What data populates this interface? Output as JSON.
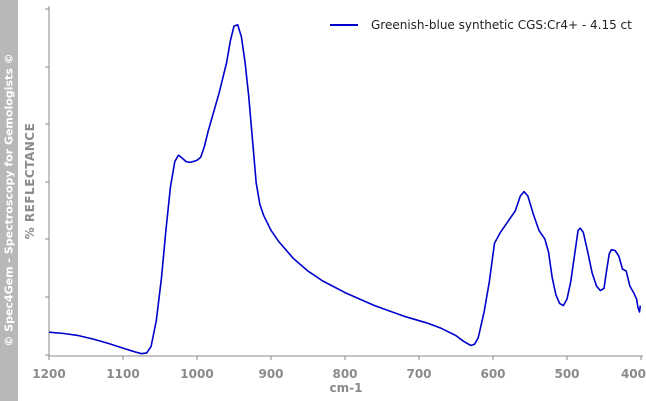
{
  "watermark": "© Spec4Gem - Spectroscopy for Gemologists ©",
  "chart_data": {
    "type": "line",
    "xlabel": "cm-1",
    "ylabel": "% REFLECTANCE",
    "xlim": [
      1200,
      400
    ],
    "x_reversed": true,
    "x_ticks": [
      "1200",
      "1100",
      "1000",
      "900",
      "800",
      "700",
      "600",
      "500",
      "400"
    ],
    "y_ticks_labeled": false,
    "grid": false,
    "legend": {
      "position": "top-right"
    },
    "series": [
      {
        "name": "Greenish-blue synthetic CGS:Cr4+ - 4.15 ct",
        "color": "#0000cc",
        "points": [
          [
            1200,
            5.3
          ],
          [
            1180,
            5.0
          ],
          [
            1160,
            4.5
          ],
          [
            1140,
            3.7
          ],
          [
            1120,
            2.7
          ],
          [
            1100,
            1.6
          ],
          [
            1085,
            0.8
          ],
          [
            1075,
            0.3
          ],
          [
            1068,
            0.5
          ],
          [
            1062,
            2.0
          ],
          [
            1055,
            8.0
          ],
          [
            1048,
            18.0
          ],
          [
            1042,
            29.0
          ],
          [
            1036,
            39.0
          ],
          [
            1030,
            45.0
          ],
          [
            1025,
            46.5
          ],
          [
            1020,
            45.8
          ],
          [
            1015,
            45.0
          ],
          [
            1010,
            44.8
          ],
          [
            1005,
            45.0
          ],
          [
            1000,
            45.3
          ],
          [
            995,
            46.0
          ],
          [
            990,
            48.5
          ],
          [
            985,
            52.0
          ],
          [
            980,
            55.0
          ],
          [
            970,
            61.0
          ],
          [
            960,
            68.0
          ],
          [
            955,
            73.0
          ],
          [
            950,
            76.5
          ],
          [
            945,
            76.8
          ],
          [
            940,
            74.0
          ],
          [
            935,
            68.0
          ],
          [
            930,
            60.0
          ],
          [
            925,
            50.0
          ],
          [
            920,
            40.0
          ],
          [
            915,
            35.0
          ],
          [
            910,
            32.5
          ],
          [
            900,
            29.0
          ],
          [
            890,
            26.5
          ],
          [
            870,
            22.5
          ],
          [
            850,
            19.5
          ],
          [
            830,
            17.2
          ],
          [
            800,
            14.5
          ],
          [
            760,
            11.5
          ],
          [
            720,
            9.0
          ],
          [
            690,
            7.5
          ],
          [
            670,
            6.2
          ],
          [
            650,
            4.5
          ],
          [
            640,
            3.2
          ],
          [
            630,
            2.2
          ],
          [
            625,
            2.5
          ],
          [
            620,
            4.0
          ],
          [
            612,
            10.0
          ],
          [
            605,
            17.0
          ],
          [
            598,
            26.0
          ],
          [
            590,
            28.5
          ],
          [
            580,
            31.0
          ],
          [
            570,
            33.5
          ],
          [
            563,
            37.0
          ],
          [
            558,
            38.0
          ],
          [
            553,
            37.0
          ],
          [
            545,
            32.5
          ],
          [
            538,
            29.0
          ],
          [
            530,
            27.0
          ],
          [
            525,
            24.0
          ],
          [
            520,
            18.0
          ],
          [
            515,
            14.0
          ],
          [
            510,
            12.0
          ],
          [
            505,
            11.5
          ],
          [
            500,
            13.0
          ],
          [
            495,
            17.0
          ],
          [
            490,
            23.0
          ],
          [
            485,
            29.0
          ],
          [
            482,
            29.5
          ],
          [
            478,
            28.5
          ],
          [
            472,
            24.0
          ],
          [
            466,
            19.0
          ],
          [
            460,
            16.0
          ],
          [
            455,
            15.0
          ],
          [
            450,
            15.5
          ],
          [
            447,
            19.0
          ],
          [
            443,
            23.5
          ],
          [
            440,
            24.5
          ],
          [
            435,
            24.3
          ],
          [
            430,
            23.0
          ],
          [
            425,
            20.0
          ],
          [
            420,
            19.5
          ],
          [
            415,
            16.0
          ],
          [
            410,
            14.5
          ],
          [
            406,
            13.0
          ],
          [
            404,
            11.0
          ],
          [
            402,
            10.0
          ],
          [
            401,
            11.5
          ]
        ]
      }
    ]
  }
}
